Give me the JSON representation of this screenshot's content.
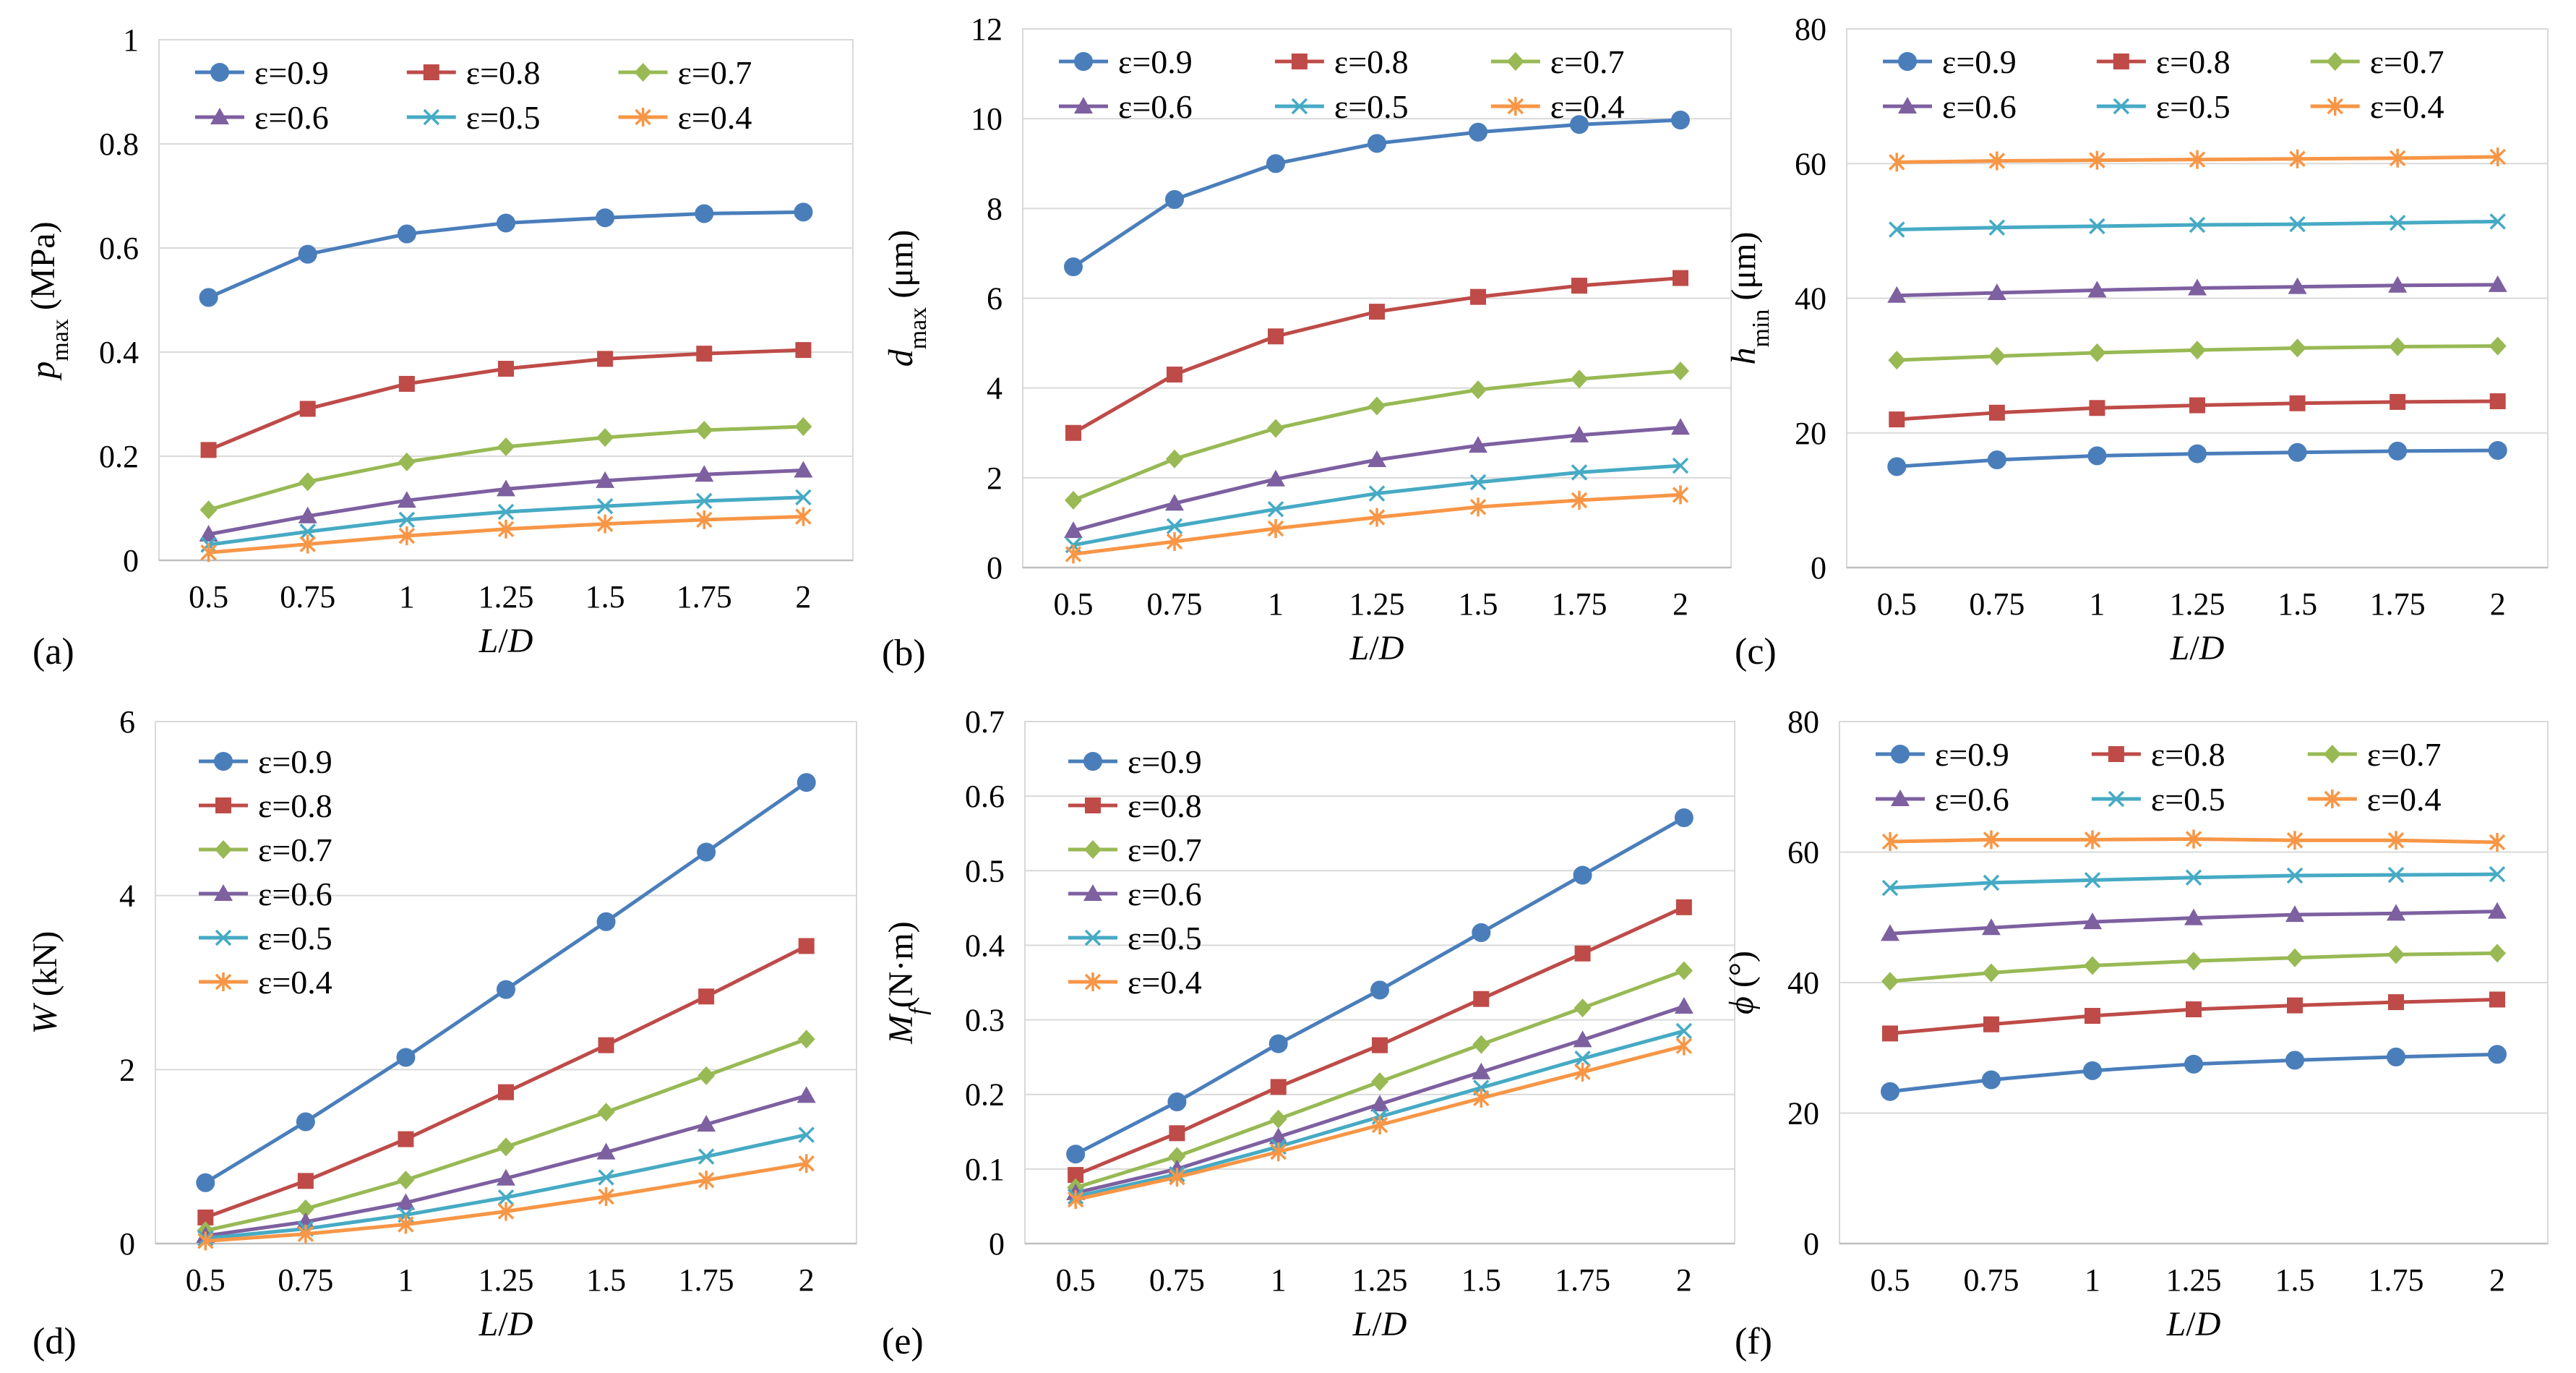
{
  "chart_data": [
    {
      "panel_label": "(a)",
      "type": "line",
      "xlabel": "L/D",
      "ylabel": "p_max (MPa)",
      "ylabel_parts": {
        "main": "p",
        "sub": "max",
        "unit": " (MPa)",
        "italic": true
      },
      "x": [
        0.5,
        0.75,
        1,
        1.25,
        1.5,
        1.75,
        2
      ],
      "x_tick_labels": [
        "0.5",
        "0.75",
        "1",
        "1.25",
        "1.5",
        "1.75",
        "2"
      ],
      "ylim": [
        0,
        1
      ],
      "y_ticks": [
        0,
        0.2,
        0.4,
        0.6,
        0.8,
        1
      ],
      "y_tick_labels": [
        "0",
        "0.2",
        "0.4",
        "0.6",
        "0.8",
        "1"
      ],
      "legend": "top-3col",
      "series": [
        {
          "name": "ε=0.9",
          "values": [
            0.505,
            0.588,
            0.627,
            0.648,
            0.658,
            0.666,
            0.669
          ]
        },
        {
          "name": "ε=0.8",
          "values": [
            0.212,
            0.291,
            0.339,
            0.368,
            0.387,
            0.397,
            0.404
          ]
        },
        {
          "name": "ε=0.7",
          "values": [
            0.097,
            0.151,
            0.189,
            0.218,
            0.236,
            0.25,
            0.257
          ]
        },
        {
          "name": "ε=0.6",
          "values": [
            0.05,
            0.085,
            0.115,
            0.137,
            0.153,
            0.165,
            0.173
          ]
        },
        {
          "name": "ε=0.5",
          "values": [
            0.03,
            0.055,
            0.078,
            0.093,
            0.104,
            0.114,
            0.121
          ]
        },
        {
          "name": "ε=0.4",
          "values": [
            0.015,
            0.031,
            0.047,
            0.06,
            0.07,
            0.078,
            0.084
          ]
        }
      ]
    },
    {
      "panel_label": "(b)",
      "type": "line",
      "xlabel": "L/D",
      "ylabel": "d_max (μm)",
      "ylabel_parts": {
        "main": "d",
        "sub": "max",
        "unit": " (μm)",
        "italic": true
      },
      "x": [
        0.5,
        0.75,
        1,
        1.25,
        1.5,
        1.75,
        2
      ],
      "x_tick_labels": [
        "0.5",
        "0.75",
        "1",
        "1.25",
        "1.5",
        "1.75",
        "2"
      ],
      "ylim": [
        0,
        12
      ],
      "y_ticks": [
        0,
        2,
        4,
        6,
        8,
        10,
        12
      ],
      "y_tick_labels": [
        "0",
        "2",
        "4",
        "6",
        "8",
        "10",
        "12"
      ],
      "legend": "top-3col",
      "series": [
        {
          "name": "ε=0.9",
          "values": [
            6.7,
            8.2,
            9.0,
            9.45,
            9.7,
            9.87,
            9.97
          ]
        },
        {
          "name": "ε=0.8",
          "values": [
            3.0,
            4.3,
            5.15,
            5.7,
            6.03,
            6.28,
            6.45
          ]
        },
        {
          "name": "ε=0.7",
          "values": [
            1.5,
            2.42,
            3.1,
            3.6,
            3.96,
            4.2,
            4.38
          ]
        },
        {
          "name": "ε=0.6",
          "values": [
            0.82,
            1.43,
            1.97,
            2.4,
            2.72,
            2.95,
            3.12
          ]
        },
        {
          "name": "ε=0.5",
          "values": [
            0.5,
            0.92,
            1.3,
            1.65,
            1.9,
            2.12,
            2.27
          ]
        },
        {
          "name": "ε=0.4",
          "values": [
            0.3,
            0.58,
            0.87,
            1.12,
            1.35,
            1.5,
            1.62
          ]
        }
      ]
    },
    {
      "panel_label": "(c)",
      "type": "line",
      "xlabel": "L/D",
      "ylabel": "h_min (μm)",
      "ylabel_parts": {
        "main": "h",
        "sub": "min",
        "unit": " (μm)",
        "italic": true
      },
      "x": [
        0.5,
        0.75,
        1,
        1.25,
        1.5,
        1.75,
        2
      ],
      "x_tick_labels": [
        "0.5",
        "0.75",
        "1",
        "1.25",
        "1.5",
        "1.75",
        "2"
      ],
      "ylim": [
        0,
        80
      ],
      "y_ticks": [
        0,
        20,
        40,
        60,
        80
      ],
      "y_tick_labels": [
        "0",
        "20",
        "40",
        "60",
        "80"
      ],
      "legend": "top-3col",
      "series": [
        {
          "name": "ε=0.9",
          "values": [
            15.0,
            16.0,
            16.6,
            16.9,
            17.1,
            17.3,
            17.4
          ]
        },
        {
          "name": "ε=0.8",
          "values": [
            22.0,
            23.0,
            23.7,
            24.1,
            24.4,
            24.6,
            24.7
          ]
        },
        {
          "name": "ε=0.7",
          "values": [
            30.8,
            31.4,
            31.9,
            32.3,
            32.6,
            32.8,
            32.9
          ]
        },
        {
          "name": "ε=0.6",
          "values": [
            40.4,
            40.8,
            41.2,
            41.5,
            41.7,
            41.9,
            42.0
          ]
        },
        {
          "name": "ε=0.5",
          "values": [
            50.2,
            50.5,
            50.7,
            50.9,
            51.0,
            51.2,
            51.4
          ]
        },
        {
          "name": "ε=0.4",
          "values": [
            60.2,
            60.4,
            60.5,
            60.6,
            60.7,
            60.8,
            61.0
          ]
        }
      ]
    },
    {
      "panel_label": "(d)",
      "type": "line",
      "xlabel": "L/D",
      "ylabel": "W (kN)",
      "ylabel_parts": {
        "main": "W",
        "sub": "",
        "unit": " (kN)",
        "italic": true
      },
      "x": [
        0.5,
        0.75,
        1,
        1.25,
        1.5,
        1.75,
        2
      ],
      "x_tick_labels": [
        "0.5",
        "0.75",
        "1",
        "1.25",
        "1.5",
        "1.75",
        "2"
      ],
      "ylim": [
        0,
        6
      ],
      "y_ticks": [
        0,
        2,
        4,
        6
      ],
      "y_tick_labels": [
        "0",
        "2",
        "4",
        "6"
      ],
      "legend": "top-left-1col",
      "series": [
        {
          "name": "ε=0.9",
          "values": [
            0.7,
            1.4,
            2.14,
            2.92,
            3.7,
            4.5,
            5.3
          ]
        },
        {
          "name": "ε=0.8",
          "values": [
            0.3,
            0.72,
            1.2,
            1.74,
            2.28,
            2.84,
            3.42
          ]
        },
        {
          "name": "ε=0.7",
          "values": [
            0.15,
            0.4,
            0.73,
            1.11,
            1.51,
            1.93,
            2.35
          ]
        },
        {
          "name": "ε=0.6",
          "values": [
            0.09,
            0.25,
            0.47,
            0.75,
            1.05,
            1.37,
            1.7
          ]
        },
        {
          "name": "ε=0.5",
          "values": [
            0.06,
            0.17,
            0.33,
            0.53,
            0.76,
            1.0,
            1.25
          ]
        },
        {
          "name": "ε=0.4",
          "values": [
            0.03,
            0.11,
            0.22,
            0.37,
            0.54,
            0.73,
            0.92
          ]
        }
      ]
    },
    {
      "panel_label": "(e)",
      "type": "line",
      "xlabel": "L/D",
      "ylabel": "M_f(N·m)",
      "ylabel_parts": {
        "main": "M",
        "sub": "f",
        "unit": "(N·m)",
        "italic": true
      },
      "x": [
        0.5,
        0.75,
        1,
        1.25,
        1.5,
        1.75,
        2
      ],
      "x_tick_labels": [
        "0.5",
        "0.75",
        "1",
        "1.25",
        "1.5",
        "1.75",
        "2"
      ],
      "ylim": [
        0,
        0.7
      ],
      "y_ticks": [
        0,
        0.1,
        0.2,
        0.3,
        0.4,
        0.5,
        0.6,
        0.7
      ],
      "y_tick_labels": [
        "0",
        "0.1",
        "0.2",
        "0.3",
        "0.4",
        "0.5",
        "0.6",
        "0.7"
      ],
      "legend": "top-left-1col",
      "series": [
        {
          "name": "ε=0.9",
          "values": [
            0.12,
            0.19,
            0.268,
            0.34,
            0.417,
            0.494,
            0.571
          ]
        },
        {
          "name": "ε=0.8",
          "values": [
            0.092,
            0.148,
            0.21,
            0.266,
            0.328,
            0.389,
            0.451
          ]
        },
        {
          "name": "ε=0.7",
          "values": [
            0.075,
            0.117,
            0.167,
            0.217,
            0.267,
            0.316,
            0.366
          ]
        },
        {
          "name": "ε=0.6",
          "values": [
            0.068,
            0.1,
            0.143,
            0.187,
            0.23,
            0.273,
            0.318
          ]
        },
        {
          "name": "ε=0.5",
          "values": [
            0.063,
            0.093,
            0.13,
            0.17,
            0.209,
            0.248,
            0.285
          ]
        },
        {
          "name": "ε=0.4",
          "values": [
            0.059,
            0.089,
            0.123,
            0.159,
            0.195,
            0.23,
            0.265
          ]
        }
      ]
    },
    {
      "panel_label": "(f)",
      "type": "line",
      "xlabel": "L/D",
      "ylabel": "ϕ (°)",
      "ylabel_parts": {
        "main": "ϕ",
        "sub": "",
        "unit": " (°)",
        "italic": true
      },
      "x": [
        0.5,
        0.75,
        1,
        1.25,
        1.5,
        1.75,
        2
      ],
      "x_tick_labels": [
        "0.5",
        "0.75",
        "1",
        "1.25",
        "1.5",
        "1.75",
        "2"
      ],
      "ylim": [
        0,
        80
      ],
      "y_ticks": [
        0,
        20,
        40,
        60,
        80
      ],
      "y_tick_labels": [
        "0",
        "20",
        "40",
        "60",
        "80"
      ],
      "legend": "top-3col",
      "series": [
        {
          "name": "ε=0.9",
          "values": [
            23.3,
            25.1,
            26.5,
            27.5,
            28.1,
            28.6,
            29.0
          ]
        },
        {
          "name": "ε=0.8",
          "values": [
            32.2,
            33.6,
            34.9,
            35.9,
            36.5,
            37.0,
            37.4
          ]
        },
        {
          "name": "ε=0.7",
          "values": [
            40.2,
            41.5,
            42.6,
            43.3,
            43.8,
            44.3,
            44.5
          ]
        },
        {
          "name": "ε=0.6",
          "values": [
            47.5,
            48.4,
            49.3,
            49.9,
            50.4,
            50.6,
            50.9
          ]
        },
        {
          "name": "ε=0.5",
          "values": [
            54.5,
            55.3,
            55.7,
            56.1,
            56.4,
            56.5,
            56.6
          ]
        },
        {
          "name": "ε=0.4",
          "values": [
            61.6,
            61.9,
            61.9,
            62.0,
            61.8,
            61.8,
            61.5
          ]
        }
      ]
    }
  ],
  "series_style": [
    {
      "color": "#4a7ebb",
      "marker": "circle"
    },
    {
      "color": "#be4b48",
      "marker": "square"
    },
    {
      "color": "#98b954",
      "marker": "diamond"
    },
    {
      "color": "#7d60a0",
      "marker": "triangle"
    },
    {
      "color": "#46aac4",
      "marker": "x"
    },
    {
      "color": "#f79646",
      "marker": "star"
    }
  ]
}
